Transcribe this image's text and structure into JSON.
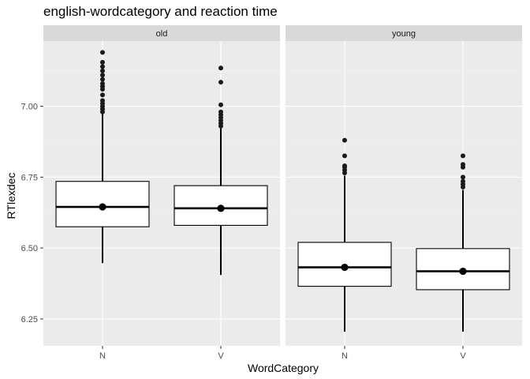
{
  "chart_data": {
    "type": "boxplot",
    "title": "english-wordcategory and reaction time",
    "xlabel": "WordCategory",
    "ylabel": "RTlexdec",
    "ylim": [
      6.155,
      7.23
    ],
    "yticks": [
      6.25,
      6.5,
      6.75,
      7.0
    ],
    "ytick_labels": [
      "6.25",
      "6.50",
      "6.75",
      "7.00"
    ],
    "categories": [
      "N",
      "V"
    ],
    "grid": true,
    "legend": "none",
    "colors": {
      "panel_bg": "#ebebeb",
      "strip_bg": "#d9d9d9",
      "grid_major": "#ffffff",
      "grid_minor": "#f2f2f2",
      "box_fill": "#ffffff",
      "ink": "#000000",
      "outlier": "#1a1a1a",
      "tick_text": "#4d4d4d",
      "strip_text": "#1a1a1a"
    },
    "facets": [
      {
        "label": "old",
        "boxes": [
          {
            "category": "N",
            "lower_whisker": 6.447,
            "q1": 6.575,
            "median": 6.645,
            "q3": 6.735,
            "upper_whisker": 6.972,
            "mean": 6.645,
            "outliers": [
              6.98,
              6.99,
              7.0,
              7.01,
              7.02,
              7.04,
              7.06,
              7.07,
              7.08,
              7.095,
              7.11,
              7.125,
              7.14,
              7.155,
              7.19
            ]
          },
          {
            "category": "V",
            "lower_whisker": 6.405,
            "q1": 6.58,
            "median": 6.64,
            "q3": 6.72,
            "upper_whisker": 6.922,
            "mean": 6.64,
            "outliers": [
              6.93,
              6.94,
              6.95,
              6.96,
              6.97,
              6.98,
              7.005,
              7.085,
              7.135
            ]
          }
        ]
      },
      {
        "label": "young",
        "boxes": [
          {
            "category": "N",
            "lower_whisker": 6.205,
            "q1": 6.365,
            "median": 6.432,
            "q3": 6.52,
            "upper_whisker": 6.755,
            "mean": 6.432,
            "outliers": [
              6.765,
              6.775,
              6.785,
              6.79,
              6.825,
              6.88
            ]
          },
          {
            "category": "V",
            "lower_whisker": 6.205,
            "q1": 6.353,
            "median": 6.418,
            "q3": 6.498,
            "upper_whisker": 6.705,
            "mean": 6.418,
            "outliers": [
              6.715,
              6.725,
              6.735,
              6.75,
              6.785,
              6.795,
              6.825
            ]
          }
        ]
      }
    ]
  }
}
